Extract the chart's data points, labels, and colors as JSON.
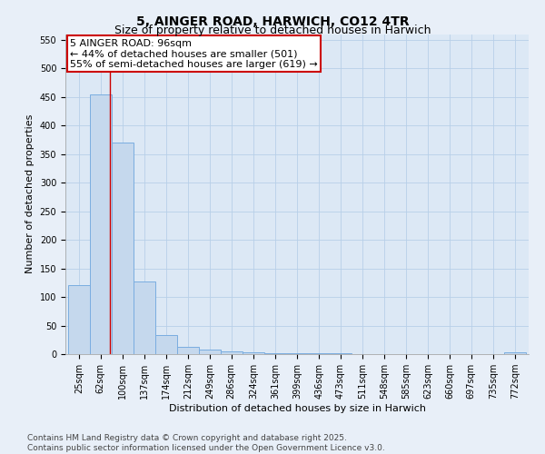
{
  "title": "5, AINGER ROAD, HARWICH, CO12 4TR",
  "subtitle": "Size of property relative to detached houses in Harwich",
  "xlabel": "Distribution of detached houses by size in Harwich",
  "ylabel": "Number of detached properties",
  "bins": [
    25,
    62,
    100,
    137,
    174,
    212,
    249,
    286,
    324,
    361,
    399,
    436,
    473,
    511,
    548,
    585,
    623,
    660,
    697,
    735,
    772
  ],
  "values": [
    120,
    455,
    370,
    127,
    33,
    13,
    8,
    5,
    3,
    2,
    1,
    1,
    1,
    0,
    0,
    0,
    0,
    0,
    0,
    0,
    3
  ],
  "bar_color": "#c5d8ed",
  "bar_edge_color": "#7aade0",
  "red_line_x": 96,
  "annotation_line1": "5 AINGER ROAD: 96sqm",
  "annotation_line2": "← 44% of detached houses are smaller (501)",
  "annotation_line3": "55% of semi-detached houses are larger (619) →",
  "annotation_box_color": "#ffffff",
  "annotation_box_edge": "#cc0000",
  "annotation_text_color": "#000000",
  "ylim": [
    0,
    560
  ],
  "yticks": [
    0,
    50,
    100,
    150,
    200,
    250,
    300,
    350,
    400,
    450,
    500,
    550
  ],
  "bg_color": "#e8eff8",
  "plot_bg_color": "#dce8f5",
  "grid_color": "#b8cfe8",
  "footer_line1": "Contains HM Land Registry data © Crown copyright and database right 2025.",
  "footer_line2": "Contains public sector information licensed under the Open Government Licence v3.0.",
  "title_fontsize": 10,
  "subtitle_fontsize": 9,
  "axis_label_fontsize": 8,
  "tick_fontsize": 7,
  "annotation_fontsize": 8,
  "footer_fontsize": 6.5
}
